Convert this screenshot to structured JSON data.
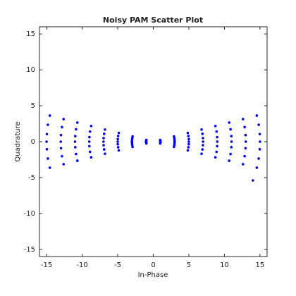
{
  "chart_data": {
    "type": "scatter",
    "title": "Noisy PAM Scatter Plot",
    "x_label": "In-Phase",
    "y_label": "Quadrature",
    "color": "#0000ee",
    "xlim": [
      -16,
      16
    ],
    "ylim": [
      -16,
      16
    ],
    "xticks": [
      -15,
      -10,
      -5,
      0,
      5,
      10,
      15
    ],
    "yticks": [
      -15,
      -10,
      -5,
      0,
      5,
      10,
      15
    ],
    "x": [
      -14.55,
      -14.82,
      -14.96,
      -15,
      -14.96,
      -14.82,
      -14.55,
      -12.61,
      -12.84,
      -12.97,
      -13,
      -12.97,
      -12.84,
      -12.61,
      -10.67,
      -10.86,
      -10.97,
      -11,
      -10.97,
      -10.86,
      -10.67,
      -8.73,
      -8.89,
      -8.98,
      -9,
      -8.98,
      -8.89,
      -8.73,
      -6.79,
      -6.91,
      -6.98,
      -7,
      -6.98,
      -6.91,
      -6.79,
      -4.85,
      -4.94,
      -4.99,
      -5,
      -4.99,
      -4.94,
      -4.85,
      -2.91,
      -2.96,
      -2.99,
      -3,
      -2.99,
      -2.96,
      -2.91,
      -0.97,
      -0.99,
      -1,
      -1,
      -1,
      -0.99,
      -0.97,
      0.97,
      0.99,
      1,
      1,
      1,
      0.99,
      0.97,
      2.91,
      2.96,
      2.99,
      3,
      2.99,
      2.96,
      2.91,
      4.85,
      4.94,
      4.99,
      5,
      4.99,
      4.94,
      4.85,
      6.79,
      6.91,
      6.98,
      7,
      6.98,
      6.91,
      6.79,
      8.73,
      8.89,
      8.98,
      9,
      8.98,
      8.89,
      8.73,
      10.67,
      10.86,
      10.97,
      11,
      10.97,
      10.86,
      10.67,
      12.61,
      12.84,
      12.97,
      13,
      12.97,
      12.84,
      12.61,
      14.55,
      14.82,
      14.96,
      15,
      14.96,
      14.82,
      14.55,
      14.0
    ],
    "values": [
      -3.63,
      -2.35,
      -1.05,
      0,
      1.05,
      2.35,
      3.63,
      -3.14,
      -2.03,
      -0.91,
      0,
      0.91,
      2.03,
      3.14,
      -2.66,
      -1.72,
      -0.77,
      0,
      0.77,
      1.72,
      2.66,
      -2.18,
      -1.41,
      -0.63,
      0,
      0.63,
      1.41,
      2.18,
      -1.69,
      -1.09,
      -0.49,
      0,
      0.49,
      1.09,
      1.69,
      -1.21,
      -0.78,
      -0.35,
      0,
      0.35,
      0.78,
      1.21,
      -0.73,
      -0.47,
      -0.21,
      0,
      0.21,
      0.47,
      0.73,
      -0.24,
      -0.16,
      -0.07,
      0,
      0.07,
      0.16,
      0.24,
      -0.24,
      -0.16,
      -0.07,
      0,
      0.07,
      0.16,
      0.24,
      -0.73,
      -0.47,
      -0.21,
      0,
      0.21,
      0.47,
      0.73,
      -1.21,
      -0.78,
      -0.35,
      0,
      0.35,
      0.78,
      1.21,
      -1.69,
      -1.09,
      -0.49,
      0,
      0.49,
      1.09,
      1.69,
      -2.18,
      -1.41,
      -0.63,
      0,
      0.63,
      1.41,
      2.18,
      -2.66,
      -1.72,
      -0.77,
      0,
      0.77,
      1.72,
      2.66,
      -3.14,
      -2.03,
      -0.91,
      0,
      0.91,
      2.03,
      3.14,
      -3.63,
      -2.35,
      -1.05,
      0,
      1.05,
      2.35,
      3.63,
      -5.4
    ]
  }
}
